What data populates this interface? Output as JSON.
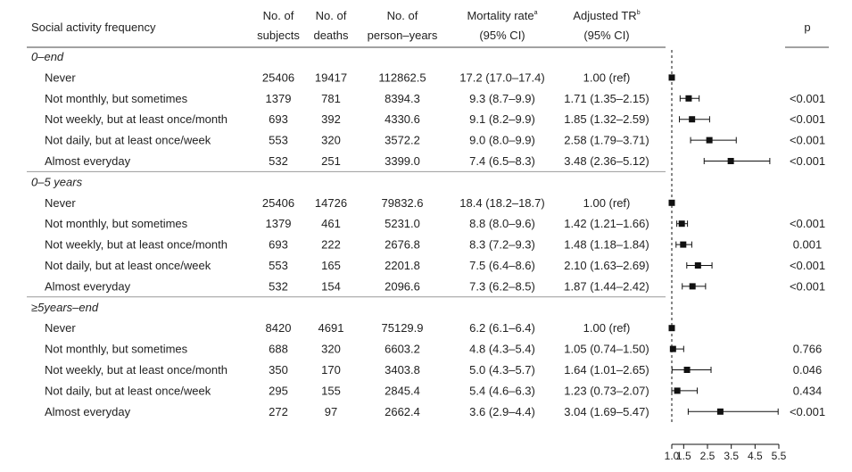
{
  "headers": {
    "activity": "Social activity frequency",
    "subjects": [
      "No. of",
      "subjects"
    ],
    "deaths": [
      "No. of",
      "deaths"
    ],
    "person_years": [
      "No. of",
      "person–years"
    ],
    "mortality": [
      "Mortality rate",
      "(95% CI)"
    ],
    "mortality_sup": "a",
    "tr": [
      "Adjusted TR",
      "(95% CI)"
    ],
    "tr_sup": "b",
    "p": "p"
  },
  "x_ticks": [
    "1.0",
    "1.5",
    "2.5",
    "3.5",
    "4.5",
    "5.5"
  ],
  "chart_data": {
    "type": "forest",
    "xlim": [
      1.0,
      5.5
    ],
    "x_ticks": [
      1.0,
      1.5,
      2.5,
      3.5,
      4.5,
      5.5
    ],
    "reference_line": 1.0,
    "columns": [
      "Social activity frequency",
      "No. of subjects",
      "No. of deaths",
      "No. of person–years",
      "Mortality rate (95% CI)",
      "Adjusted TR (95% CI)",
      "p"
    ],
    "sections": [
      {
        "title": "0–end",
        "rows": [
          {
            "label": "Never",
            "subjects": "25406",
            "deaths": "19417",
            "person_years": "112862.5",
            "mortality": "17.2 (17.0–17.4)",
            "tr": "1.00 (ref)",
            "p": "",
            "est": 1.0,
            "lo": 1.0,
            "hi": 1.0
          },
          {
            "label": "Not monthly, but sometimes",
            "subjects": "1379",
            "deaths": "781",
            "person_years": "8394.3",
            "mortality": "9.3 (8.7–9.9)",
            "tr": "1.71 (1.35–2.15)",
            "p": "<0.001",
            "est": 1.71,
            "lo": 1.35,
            "hi": 2.15
          },
          {
            "label": "Not weekly, but at least once/month",
            "subjects": "693",
            "deaths": "392",
            "person_years": "4330.6",
            "mortality": "9.1 (8.2–9.9)",
            "tr": "1.85 (1.32–2.59)",
            "p": "<0.001",
            "est": 1.85,
            "lo": 1.32,
            "hi": 2.59
          },
          {
            "label": "Not daily, but at least once/week",
            "subjects": "553",
            "deaths": "320",
            "person_years": "3572.2",
            "mortality": "9.0 (8.0–9.9)",
            "tr": "2.58 (1.79–3.71)",
            "p": "<0.001",
            "est": 2.58,
            "lo": 1.79,
            "hi": 3.71
          },
          {
            "label": "Almost everyday",
            "subjects": "532",
            "deaths": "251",
            "person_years": "3399.0",
            "mortality": "7.4 (6.5–8.3)",
            "tr": "3.48 (2.36–5.12)",
            "p": "<0.001",
            "est": 3.48,
            "lo": 2.36,
            "hi": 5.12
          }
        ]
      },
      {
        "title": "0–5 years",
        "rows": [
          {
            "label": "Never",
            "subjects": "25406",
            "deaths": "14726",
            "person_years": "79832.6",
            "mortality": "18.4 (18.2–18.7)",
            "tr": "1.00 (ref)",
            "p": "",
            "est": 1.0,
            "lo": 1.0,
            "hi": 1.0
          },
          {
            "label": "Not monthly, but sometimes",
            "subjects": "1379",
            "deaths": "461",
            "person_years": "5231.0",
            "mortality": "8.8 (8.0–9.6)",
            "tr": "1.42 (1.21–1.66)",
            "p": "<0.001",
            "est": 1.42,
            "lo": 1.21,
            "hi": 1.66
          },
          {
            "label": "Not weekly, but at least once/month",
            "subjects": "693",
            "deaths": "222",
            "person_years": "2676.8",
            "mortality": "8.3 (7.2–9.3)",
            "tr": "1.48 (1.18–1.84)",
            "p": "0.001",
            "est": 1.48,
            "lo": 1.18,
            "hi": 1.84
          },
          {
            "label": "Not daily, but at least once/week",
            "subjects": "553",
            "deaths": "165",
            "person_years": "2201.8",
            "mortality": "7.5 (6.4–8.6)",
            "tr": "2.10 (1.63–2.69)",
            "p": "<0.001",
            "est": 2.1,
            "lo": 1.63,
            "hi": 2.69
          },
          {
            "label": "Almost everyday",
            "subjects": "532",
            "deaths": "154",
            "person_years": "2096.6",
            "mortality": "7.3 (6.2–8.5)",
            "tr": "1.87 (1.44–2.42)",
            "p": "<0.001",
            "est": 1.87,
            "lo": 1.44,
            "hi": 2.42
          }
        ]
      },
      {
        "title": "≥5years–end",
        "rows": [
          {
            "label": "Never",
            "subjects": "8420",
            "deaths": "4691",
            "person_years": "75129.9",
            "mortality": "6.2 (6.1–6.4)",
            "tr": "1.00 (ref)",
            "p": "",
            "est": 1.0,
            "lo": 1.0,
            "hi": 1.0
          },
          {
            "label": "Not monthly, but sometimes",
            "subjects": "688",
            "deaths": "320",
            "person_years": "6603.2",
            "mortality": "4.8 (4.3–5.4)",
            "tr": "1.05 (0.74–1.50)",
            "p": "0.766",
            "est": 1.05,
            "lo": 0.74,
            "hi": 1.5
          },
          {
            "label": "Not weekly, but at least once/month",
            "subjects": "350",
            "deaths": "170",
            "person_years": "3403.8",
            "mortality": "5.0 (4.3–5.7)",
            "tr": "1.64 (1.01–2.65)",
            "p": "0.046",
            "est": 1.64,
            "lo": 1.01,
            "hi": 2.65
          },
          {
            "label": "Not daily, but at least once/week",
            "subjects": "295",
            "deaths": "155",
            "person_years": "2845.4",
            "mortality": "5.4 (4.6–6.3)",
            "tr": "1.23 (0.73–2.07)",
            "p": "0.434",
            "est": 1.23,
            "lo": 0.73,
            "hi": 2.07
          },
          {
            "label": "Almost everyday",
            "subjects": "272",
            "deaths": "97",
            "person_years": "2662.4",
            "mortality": "3.6 (2.9–4.4)",
            "tr": "3.04 (1.69–5.47)",
            "p": "<0.001",
            "est": 3.04,
            "lo": 1.69,
            "hi": 5.47
          }
        ]
      }
    ]
  }
}
